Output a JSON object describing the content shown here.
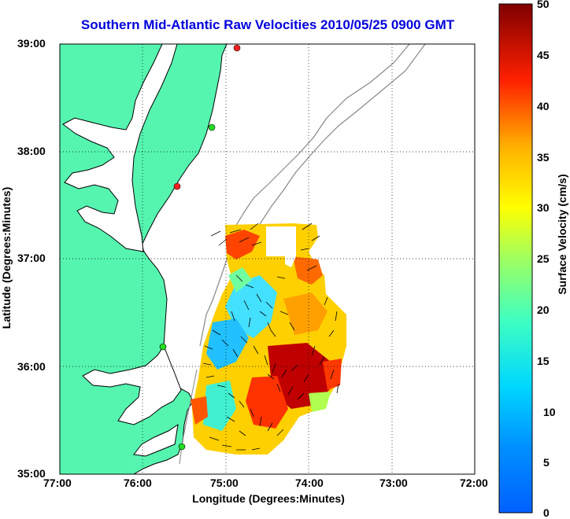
{
  "title": "Southern Mid-Atlantic Raw Velocities 2010/05/25 0900 GMT",
  "map": {
    "xlabel": "Longitude (Degrees:Minutes)",
    "ylabel": "Latitude (Degrees:Minutes)",
    "lon_range": [
      -77,
      -72
    ],
    "lat_range": [
      35,
      39
    ],
    "x_ticks": [
      "77:00",
      "76:00",
      "75:00",
      "74:00",
      "73:00",
      "72:00"
    ],
    "y_ticks": [
      "39:00",
      "38:00",
      "37:00",
      "36:00",
      "35:00"
    ],
    "grid": "dotted",
    "land_color": "#55f5b0"
  },
  "colorbar": {
    "label": "Surface Velocity (cm/s)",
    "min": 0,
    "max": 50,
    "ticks": [
      "0",
      "5",
      "10",
      "15",
      "20",
      "25",
      "30",
      "35",
      "40",
      "45",
      "50"
    ],
    "colormap": "jet"
  },
  "stations": [
    {
      "color": "#ff2020",
      "lon": -74.9,
      "lat": 38.96
    },
    {
      "color": "#22dd22",
      "lon": -75.15,
      "lat": 38.22
    },
    {
      "color": "#ff2020",
      "lon": -75.55,
      "lat": 37.68
    },
    {
      "color": "#22dd22",
      "lon": -75.7,
      "lat": 36.18
    },
    {
      "color": "#22dd22",
      "lon": -75.5,
      "lat": 35.25
    }
  ]
}
